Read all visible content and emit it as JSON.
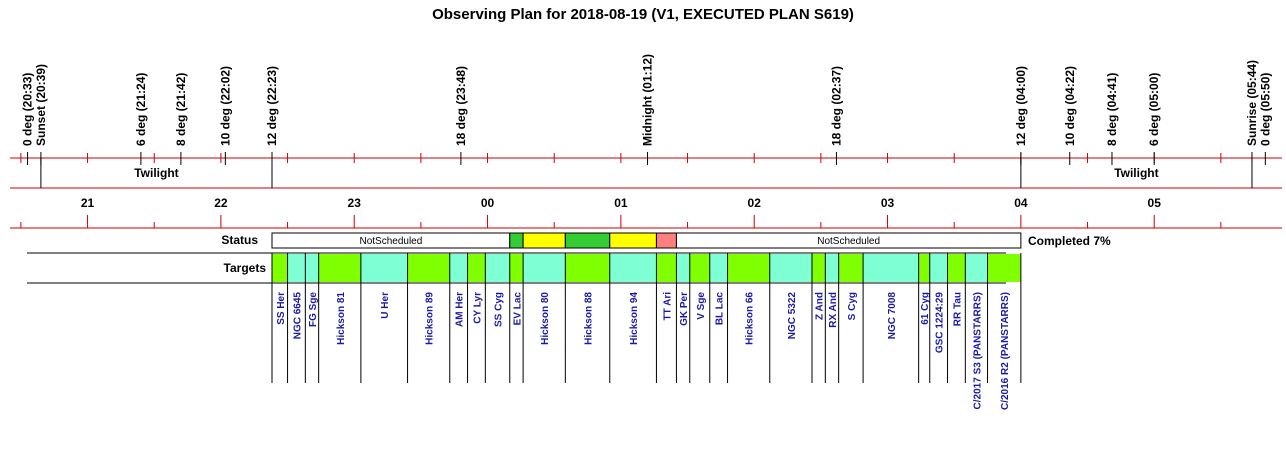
{
  "title": "Observing Plan for 2018-08-19 (V1, EXECUTED PLAN S619)",
  "colors": {
    "red_line": "#cc0000",
    "not_scheduled": "#ffffff",
    "completed": "#33cc33",
    "partial": "#ffff00",
    "failed": "#ff7f7f",
    "target_a": "#7fffd4",
    "target_b": "#7fff00"
  },
  "time_axis": {
    "start_hour": 20.2,
    "end_hour": 29.95
  },
  "events": [
    {
      "label": "0 deg (20:33)",
      "time": "20:33"
    },
    {
      "label": "Sunset (20:39)",
      "time": "20:39"
    },
    {
      "label": "6 deg (21:24)",
      "time": "21:24"
    },
    {
      "label": "8 deg (21:42)",
      "time": "21:42"
    },
    {
      "label": "10 deg (22:02)",
      "time": "22:02"
    },
    {
      "label": "12 deg (22:23)",
      "time": "22:23"
    },
    {
      "label": "18 deg (23:48)",
      "time": "23:48"
    },
    {
      "label": "Midnight (01:12)",
      "time": "25:12"
    },
    {
      "label": "18 deg (02:37)",
      "time": "26:37"
    },
    {
      "label": "12 deg (04:00)",
      "time": "28:00"
    },
    {
      "label": "10 deg (04:22)",
      "time": "28:22"
    },
    {
      "label": "8 deg (04:41)",
      "time": "28:41"
    },
    {
      "label": "6 deg (05:00)",
      "time": "29:00"
    },
    {
      "label": "Sunrise (05:44)",
      "time": "29:44"
    },
    {
      "label": "0 deg (05:50)",
      "time": "29:50"
    }
  ],
  "twilight": {
    "label": "Twilight",
    "sunset": "20:39",
    "astro_start": "22:23",
    "astro_end": "28:00",
    "sunrise": "29:44"
  },
  "hour_labels": [
    {
      "label": "21",
      "hour": 21
    },
    {
      "label": "22",
      "hour": 22
    },
    {
      "label": "23",
      "hour": 23
    },
    {
      "label": "00",
      "hour": 24
    },
    {
      "label": "01",
      "hour": 25
    },
    {
      "label": "02",
      "hour": 26
    },
    {
      "label": "03",
      "hour": 27
    },
    {
      "label": "04",
      "hour": 28
    },
    {
      "label": "05",
      "hour": 29
    }
  ],
  "status": {
    "row_label": "Status",
    "completed_text": "Completed 7%",
    "segments": [
      {
        "start": "22:23",
        "end": "24:10",
        "state": "not_scheduled",
        "label": "NotScheduled"
      },
      {
        "start": "24:10",
        "end": "24:16",
        "state": "completed",
        "label": ""
      },
      {
        "start": "24:16",
        "end": "24:35",
        "state": "partial",
        "label": ""
      },
      {
        "start": "24:35",
        "end": "24:55",
        "state": "completed",
        "label": ""
      },
      {
        "start": "24:55",
        "end": "25:16",
        "state": "partial",
        "label": ""
      },
      {
        "start": "25:16",
        "end": "25:25",
        "state": "failed",
        "label": ""
      },
      {
        "start": "25:25",
        "end": "28:00",
        "state": "not_scheduled",
        "label": "NotScheduled"
      }
    ]
  },
  "targets": {
    "row_label": "Targets",
    "items": [
      {
        "name": "SS Her",
        "start": "22:23",
        "end": "22:30",
        "color": "b"
      },
      {
        "name": "NGC 6645",
        "start": "22:30",
        "end": "22:38",
        "color": "a"
      },
      {
        "name": "FG Sge",
        "start": "22:38",
        "end": "22:44",
        "color": "a"
      },
      {
        "name": "Hickson 81",
        "start": "22:44",
        "end": "23:03",
        "color": "b"
      },
      {
        "name": "U Her",
        "start": "23:03",
        "end": "23:24",
        "color": "a"
      },
      {
        "name": "Hickson 89",
        "start": "23:24",
        "end": "23:43",
        "color": "b"
      },
      {
        "name": "AM Her",
        "start": "23:43",
        "end": "23:51",
        "color": "a"
      },
      {
        "name": "CY Lyr",
        "start": "23:51",
        "end": "23:59",
        "color": "b"
      },
      {
        "name": "SS Cyg",
        "start": "23:59",
        "end": "24:10",
        "color": "a"
      },
      {
        "name": "EV Lac",
        "start": "24:10",
        "end": "24:16",
        "color": "b"
      },
      {
        "name": "Hickson 80",
        "start": "24:16",
        "end": "24:35",
        "color": "a"
      },
      {
        "name": "Hickson 88",
        "start": "24:35",
        "end": "24:55",
        "color": "b"
      },
      {
        "name": "Hickson 94",
        "start": "24:55",
        "end": "25:16",
        "color": "a"
      },
      {
        "name": "TT Ari",
        "start": "25:16",
        "end": "25:25",
        "color": "b"
      },
      {
        "name": "GK Per",
        "start": "25:25",
        "end": "25:31",
        "color": "a"
      },
      {
        "name": "V Sge",
        "start": "25:31",
        "end": "25:40",
        "color": "b"
      },
      {
        "name": "BL Lac",
        "start": "25:40",
        "end": "25:48",
        "color": "a"
      },
      {
        "name": "Hickson 66",
        "start": "25:48",
        "end": "26:07",
        "color": "b"
      },
      {
        "name": "NGC 5322",
        "start": "26:07",
        "end": "26:26",
        "color": "a"
      },
      {
        "name": "Z And",
        "start": "26:26",
        "end": "26:32",
        "color": "b"
      },
      {
        "name": "RX And",
        "start": "26:32",
        "end": "26:38",
        "color": "a"
      },
      {
        "name": "S Cyg",
        "start": "26:38",
        "end": "26:49",
        "color": "b"
      },
      {
        "name": "NGC 7008",
        "start": "26:49",
        "end": "27:14",
        "color": "a"
      },
      {
        "name": "61 Cyg",
        "start": "27:14",
        "end": "27:19",
        "color": "b"
      },
      {
        "name": "GSC 1224:29",
        "start": "27:19",
        "end": "27:27",
        "color": "a"
      },
      {
        "name": "RR Tau",
        "start": "27:27",
        "end": "27:35",
        "color": "b"
      },
      {
        "name": "C/2017 S3 (PANSTARRS)",
        "start": "27:35",
        "end": "27:45",
        "color": "a"
      },
      {
        "name": "C/2016 R2 (PANSTARRS)",
        "start": "27:45",
        "end": "28:00",
        "color": "b"
      }
    ]
  }
}
